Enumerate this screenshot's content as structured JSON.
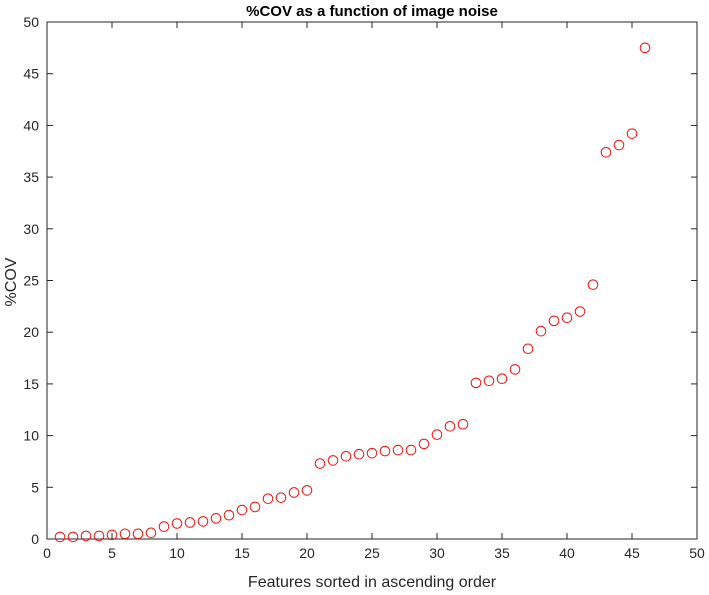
{
  "chart_data": {
    "type": "scatter",
    "title": "%COV as a function of image noise",
    "xlabel": "Features sorted in ascending order",
    "ylabel": "%COV",
    "xlim": [
      0,
      50
    ],
    "ylim": [
      0,
      50
    ],
    "xticks": [
      0,
      5,
      10,
      15,
      20,
      25,
      30,
      35,
      40,
      45,
      50
    ],
    "yticks": [
      0,
      5,
      10,
      15,
      20,
      25,
      30,
      35,
      40,
      45,
      50
    ],
    "grid": false,
    "marker": "circle-open",
    "marker_color": "#e8120c",
    "series": [
      {
        "x": [
          1,
          2,
          3,
          4,
          5,
          6,
          7,
          8,
          9,
          10,
          11,
          12,
          13,
          14,
          15,
          16,
          17,
          18,
          19,
          20,
          21,
          22,
          23,
          24,
          25,
          26,
          27,
          28,
          29,
          30,
          31,
          32,
          33,
          34,
          35,
          36,
          37,
          38,
          39,
          40,
          41,
          42,
          43,
          44,
          45,
          46
        ],
        "y": [
          0.2,
          0.2,
          0.3,
          0.3,
          0.4,
          0.5,
          0.5,
          0.6,
          1.2,
          1.5,
          1.6,
          1.7,
          2.0,
          2.3,
          2.8,
          3.1,
          3.9,
          4.0,
          4.5,
          4.7,
          7.3,
          7.6,
          8.0,
          8.2,
          8.3,
          8.5,
          8.6,
          8.6,
          9.2,
          10.1,
          10.9,
          11.1,
          15.1,
          15.3,
          15.5,
          16.4,
          18.4,
          20.1,
          21.1,
          21.4,
          22.0,
          24.6,
          37.4,
          38.1,
          39.2,
          47.5
        ]
      }
    ]
  }
}
